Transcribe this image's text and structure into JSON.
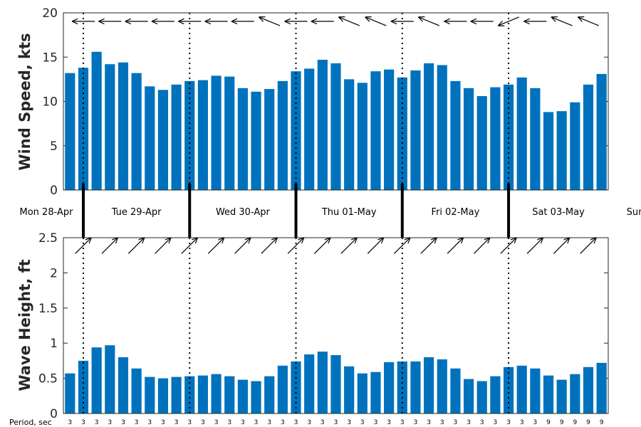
{
  "chart_data": [
    {
      "type": "bar",
      "ylabel": "Wind Speed, kts",
      "ylim": [
        0,
        20
      ],
      "yticks": [
        "0",
        "5",
        "10",
        "15",
        "20"
      ],
      "bar_color": "#0072bd",
      "values": [
        13.2,
        13.8,
        15.6,
        14.2,
        14.4,
        13.2,
        11.7,
        11.3,
        11.9,
        12.3,
        12.4,
        12.9,
        12.8,
        11.5,
        11.1,
        11.4,
        12.3,
        13.4,
        13.7,
        14.7,
        14.3,
        12.5,
        12.1,
        13.4,
        13.6,
        12.7,
        13.5,
        14.3,
        14.1,
        12.3,
        11.5,
        10.6,
        11.6,
        11.9,
        12.7,
        11.5,
        8.8,
        8.9,
        9.9,
        11.9,
        13.1
      ],
      "direction_arrows": [
        "W",
        "W",
        "WNW",
        "W",
        "WNW",
        "W",
        "W",
        "W",
        "WNW",
        "W",
        "W",
        "W",
        "WNW",
        "W",
        "W",
        "WNW",
        "W",
        "W",
        "W",
        "W",
        "W",
        "WNW",
        "W",
        "WNW",
        "W",
        "W",
        "WNW",
        "WNW",
        "W",
        "W",
        "W",
        "W",
        "W",
        "WSW",
        "W",
        "W",
        "WNW",
        "WNW",
        "W",
        "WNW",
        "W"
      ]
    },
    {
      "type": "bar",
      "ylabel": "Wave Height, ft",
      "ylim": [
        0,
        2.5
      ],
      "yticks": [
        "0",
        "0.5",
        "1",
        "1.5",
        "2",
        "2.5"
      ],
      "bar_color": "#0072bd",
      "values": [
        0.57,
        0.75,
        0.94,
        0.97,
        0.8,
        0.64,
        0.52,
        0.5,
        0.52,
        0.53,
        0.54,
        0.56,
        0.53,
        0.48,
        0.46,
        0.53,
        0.68,
        0.74,
        0.84,
        0.88,
        0.83,
        0.67,
        0.57,
        0.59,
        0.73,
        0.74,
        0.74,
        0.8,
        0.77,
        0.64,
        0.49,
        0.46,
        0.53,
        0.66,
        0.68,
        0.64,
        0.54,
        0.48,
        0.56,
        0.66,
        0.72
      ],
      "direction_arrows": [
        "NE",
        "NE",
        "NE",
        "NE",
        "NE",
        "NE",
        "NE",
        "NE",
        "NE",
        "NE",
        "NE",
        "NE",
        "NE",
        "NE",
        "NE",
        "NE",
        "NE",
        "NE",
        "NE",
        "NE",
        "NE",
        "NE",
        "NE",
        "NE",
        "NE",
        "NE",
        "NE",
        "NE",
        "NE",
        "NE",
        "NE",
        "NE",
        "NE",
        "NE",
        "NE",
        "NE",
        "NE",
        "NE",
        "NE",
        "NE",
        "NE"
      ]
    }
  ],
  "days": [
    "Mon 28-Apr",
    "Tue 29-Apr",
    "Wed 30-Apr",
    "Thu 01-May",
    "Fri 02-May",
    "Sat 03-May",
    "Sun"
  ],
  "period_label": "Period, sec",
  "periods": [
    "3",
    "3",
    "3",
    "3",
    "3",
    "3",
    "3",
    "3",
    "3",
    "3",
    "3",
    "3",
    "3",
    "3",
    "3",
    "3",
    "3",
    "3",
    "3",
    "3",
    "3",
    "3",
    "3",
    "3",
    "3",
    "3",
    "3",
    "3",
    "3",
    "3",
    "3",
    "3",
    "3",
    "3",
    "3",
    "3",
    "9",
    "9",
    "9",
    "9",
    "9"
  ]
}
